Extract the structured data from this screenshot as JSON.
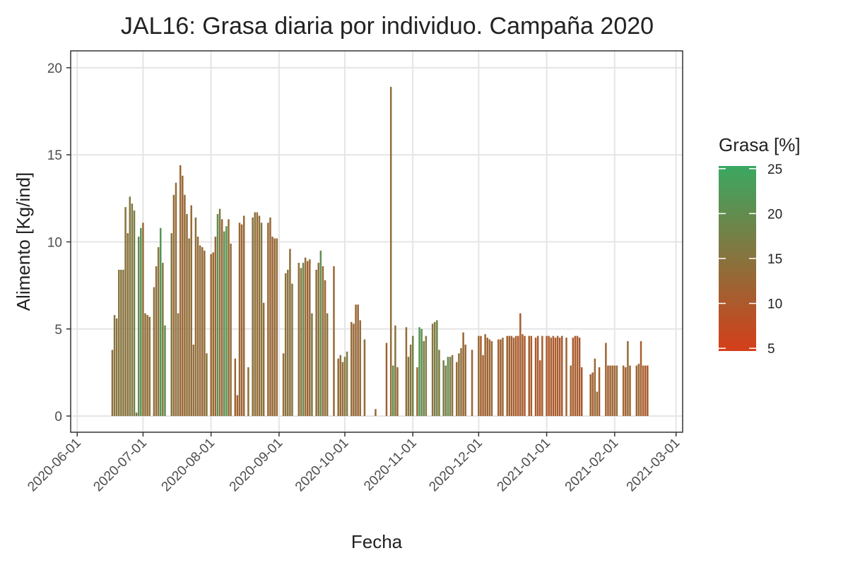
{
  "chart_data": {
    "type": "bar",
    "title": "JAL16: Grasa diaria por individuo. Campaña 2020",
    "x_label": "Fecha",
    "y_label": "Alimento [Kg/ind]",
    "legend_title": "Grasa [%]",
    "x": [
      "2020-06-17",
      "2020-06-18",
      "2020-06-19",
      "2020-06-20",
      "2020-06-21",
      "2020-06-22",
      "2020-06-23",
      "2020-06-24",
      "2020-06-25",
      "2020-06-26",
      "2020-06-27",
      "2020-06-28",
      "2020-06-29",
      "2020-06-30",
      "2020-07-01",
      "2020-07-02",
      "2020-07-03",
      "2020-07-04",
      "2020-07-06",
      "2020-07-07",
      "2020-07-08",
      "2020-07-09",
      "2020-07-10",
      "2020-07-11",
      "2020-07-14",
      "2020-07-15",
      "2020-07-16",
      "2020-07-17",
      "2020-07-18",
      "2020-07-19",
      "2020-07-20",
      "2020-07-21",
      "2020-07-22",
      "2020-07-23",
      "2020-07-24",
      "2020-07-25",
      "2020-07-26",
      "2020-07-27",
      "2020-07-28",
      "2020-07-29",
      "2020-07-30",
      "2020-08-01",
      "2020-08-02",
      "2020-08-03",
      "2020-08-04",
      "2020-08-05",
      "2020-08-06",
      "2020-08-07",
      "2020-08-08",
      "2020-08-09",
      "2020-08-10",
      "2020-08-12",
      "2020-08-13",
      "2020-08-14",
      "2020-08-15",
      "2020-08-16",
      "2020-08-18",
      "2020-08-20",
      "2020-08-21",
      "2020-08-22",
      "2020-08-23",
      "2020-08-24",
      "2020-08-25",
      "2020-08-27",
      "2020-08-28",
      "2020-08-29",
      "2020-08-30",
      "2020-08-31",
      "2020-09-03",
      "2020-09-04",
      "2020-09-05",
      "2020-09-06",
      "2020-09-07",
      "2020-09-10",
      "2020-09-11",
      "2020-09-12",
      "2020-09-13",
      "2020-09-14",
      "2020-09-15",
      "2020-09-16",
      "2020-09-18",
      "2020-09-19",
      "2020-09-20",
      "2020-09-21",
      "2020-09-22",
      "2020-09-23",
      "2020-09-26",
      "2020-09-28",
      "2020-09-29",
      "2020-09-30",
      "2020-10-01",
      "2020-10-02",
      "2020-10-04",
      "2020-10-05",
      "2020-10-06",
      "2020-10-07",
      "2020-10-08",
      "2020-10-10",
      "2020-10-15",
      "2020-10-20",
      "2020-10-22",
      "2020-10-23",
      "2020-10-24",
      "2020-10-25",
      "2020-10-29",
      "2020-10-30",
      "2020-10-31",
      "2020-11-01",
      "2020-11-03",
      "2020-11-04",
      "2020-11-05",
      "2020-11-06",
      "2020-11-07",
      "2020-11-10",
      "2020-11-11",
      "2020-11-12",
      "2020-11-13",
      "2020-11-15",
      "2020-11-16",
      "2020-11-17",
      "2020-11-18",
      "2020-11-19",
      "2020-11-21",
      "2020-11-22",
      "2020-11-23",
      "2020-11-24",
      "2020-11-25",
      "2020-11-28",
      "2020-12-01",
      "2020-12-02",
      "2020-12-03",
      "2020-12-04",
      "2020-12-05",
      "2020-12-06",
      "2020-12-07",
      "2020-12-10",
      "2020-12-11",
      "2020-12-12",
      "2020-12-14",
      "2020-12-15",
      "2020-12-16",
      "2020-12-17",
      "2020-12-18",
      "2020-12-19",
      "2020-12-20",
      "2020-12-21",
      "2020-12-22",
      "2020-12-24",
      "2020-12-25",
      "2020-12-27",
      "2020-12-28",
      "2020-12-29",
      "2020-12-30",
      "2021-01-01",
      "2021-01-02",
      "2021-01-03",
      "2021-01-04",
      "2021-01-05",
      "2021-01-06",
      "2021-01-07",
      "2021-01-08",
      "2021-01-10",
      "2021-01-12",
      "2021-01-13",
      "2021-01-14",
      "2021-01-15",
      "2021-01-16",
      "2021-01-17",
      "2021-01-21",
      "2021-01-22",
      "2021-01-23",
      "2021-01-24",
      "2021-01-25",
      "2021-01-28",
      "2021-01-29",
      "2021-01-30",
      "2021-01-31",
      "2021-02-01",
      "2021-02-02",
      "2021-02-05",
      "2021-02-06",
      "2021-02-07",
      "2021-02-08",
      "2021-02-11",
      "2021-02-12",
      "2021-02-13",
      "2021-02-14",
      "2021-02-15",
      "2021-02-16"
    ],
    "values": [
      3.8,
      5.8,
      5.6,
      8.4,
      8.4,
      8.4,
      12.0,
      10.5,
      12.6,
      12.2,
      11.8,
      0.2,
      10.3,
      10.8,
      11.1,
      5.9,
      5.8,
      5.7,
      7.4,
      8.6,
      9.7,
      10.8,
      8.8,
      5.2,
      10.5,
      12.7,
      13.4,
      5.9,
      14.4,
      13.8,
      12.7,
      11.6,
      10.2,
      12.1,
      4.1,
      11.4,
      10.3,
      9.8,
      9.7,
      9.5,
      3.6,
      9.3,
      9.4,
      10.3,
      11.6,
      11.9,
      11.3,
      10.6,
      10.9,
      11.3,
      9.9,
      3.3,
      1.2,
      11.1,
      11.0,
      11.5,
      2.8,
      11.4,
      11.7,
      11.7,
      11.5,
      11.1,
      6.5,
      11.1,
      11.4,
      10.3,
      10.2,
      10.2,
      3.6,
      8.2,
      8.4,
      9.6,
      7.6,
      8.8,
      8.5,
      8.8,
      9.1,
      8.9,
      9.0,
      5.9,
      8.4,
      8.8,
      9.5,
      8.6,
      7.8,
      5.9,
      8.6,
      3.3,
      3.5,
      3.1,
      3.4,
      3.7,
      5.4,
      5.3,
      6.4,
      6.4,
      5.5,
      4.4,
      0.4,
      4.2,
      18.9,
      2.9,
      5.2,
      2.8,
      5.1,
      3.4,
      4.1,
      4.6,
      2.8,
      5.1,
      5.0,
      4.3,
      4.6,
      5.3,
      5.4,
      5.5,
      3.8,
      3.2,
      2.9,
      3.4,
      3.4,
      3.5,
      3.1,
      3.6,
      3.9,
      4.8,
      4.1,
      3.8,
      4.6,
      4.6,
      3.5,
      4.7,
      4.5,
      4.4,
      4.3,
      4.4,
      4.4,
      4.5,
      4.6,
      4.6,
      4.6,
      4.5,
      4.6,
      4.6,
      5.9,
      4.7,
      4.6,
      4.6,
      4.6,
      4.5,
      4.6,
      3.2,
      4.6,
      4.6,
      4.6,
      4.5,
      4.6,
      4.5,
      4.6,
      4.5,
      4.6,
      4.5,
      2.9,
      4.5,
      4.6,
      4.6,
      4.5,
      2.8,
      2.4,
      2.5,
      3.3,
      1.4,
      2.8,
      4.2,
      2.9,
      2.9,
      2.9,
      2.9,
      2.9,
      2.9,
      2.8,
      4.3,
      2.9,
      2.9,
      3.0,
      4.3,
      2.9,
      2.9,
      2.9
    ],
    "fill_values": [
      14,
      15,
      15,
      15,
      15,
      16,
      15,
      14,
      16,
      16,
      17,
      15,
      20,
      22,
      13,
      14,
      14,
      14,
      15,
      13,
      15,
      22,
      16,
      20,
      16,
      13,
      14,
      15,
      12,
      13,
      13,
      14,
      15,
      13,
      14,
      14,
      13,
      14,
      12,
      14,
      15,
      13,
      13,
      12,
      20,
      16,
      12,
      20,
      22,
      13,
      14,
      12,
      11,
      13,
      12,
      13,
      14,
      14,
      15,
      13,
      14,
      16,
      13,
      12,
      13,
      12,
      14,
      13,
      14,
      14,
      16,
      14,
      16,
      14,
      16,
      18,
      14,
      11,
      13,
      16,
      14,
      15,
      20,
      13,
      13,
      16,
      13,
      13,
      14,
      13,
      15,
      17,
      13,
      13,
      13,
      12,
      14,
      13,
      13,
      12,
      14,
      20,
      15,
      13,
      13,
      16,
      15,
      18,
      13,
      22,
      20,
      18,
      16,
      15,
      17,
      18,
      16,
      18,
      16,
      20,
      18,
      14,
      13,
      14,
      15,
      12,
      13,
      12,
      13,
      11,
      12,
      12,
      12,
      12,
      13,
      11,
      12,
      13,
      12,
      11,
      12,
      11,
      10,
      10,
      11,
      11,
      10,
      11,
      11,
      10,
      10,
      10,
      11,
      11,
      10,
      11,
      10,
      10,
      11,
      10,
      11,
      12,
      12,
      11,
      10,
      11,
      10,
      11,
      12,
      11,
      13,
      13,
      11,
      12,
      11,
      12,
      13,
      12,
      13,
      12,
      11,
      13,
      12,
      12,
      13,
      11,
      11,
      11,
      10
    ],
    "color_low": "#d53e19",
    "color_high": "#3aa862",
    "color_lim": [
      4.7,
      25.3
    ],
    "color_ticks": [
      5,
      10,
      15,
      20,
      25
    ],
    "xlim": [
      "2020-05-29",
      "2021-03-04"
    ],
    "ylim": [
      -0.93,
      20.97
    ],
    "xticks": [
      "2020-06-01",
      "2020-07-01",
      "2020-08-01",
      "2020-09-01",
      "2020-10-01",
      "2020-11-01",
      "2020-12-01",
      "2021-01-01",
      "2021-02-01",
      "2021-03-01"
    ],
    "yticks": [
      0,
      5,
      10,
      15,
      20
    ],
    "grid": true
  }
}
